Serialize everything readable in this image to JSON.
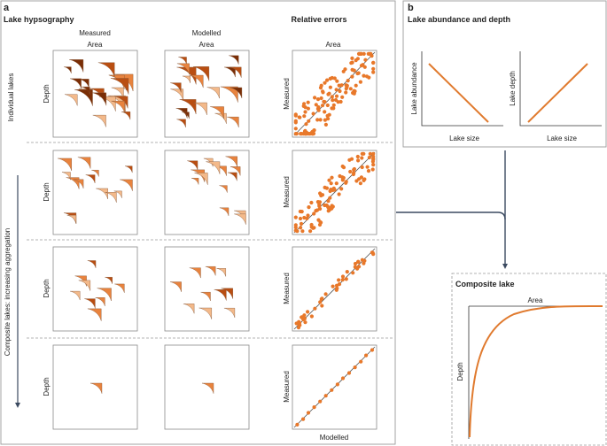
{
  "panel_a": {
    "label": "a",
    "title": "Lake hypsography",
    "col_measured": "Measured",
    "col_modelled": "Modelled",
    "col_errors": "Relative errors",
    "area_label": "Area",
    "depth_label": "Depth",
    "measured_axis_label": "Measured",
    "modelled_axis_label": "Modelled",
    "row_label_individual": "Individual lakes",
    "row_label_composite": "Composite lakes: increasing aggregation"
  },
  "panel_b": {
    "label": "b",
    "title": "Lake abundance and depth",
    "chart1_ylabel": "Lake abundance",
    "chart1_xlabel": "Lake size",
    "chart2_ylabel": "Lake depth",
    "chart2_xlabel": "Lake size"
  },
  "composite_lake": {
    "title": "Composite lake",
    "area_label": "Area",
    "depth_label": "Depth"
  },
  "colors": {
    "light": "#f3b98a",
    "mid": "#e8833e",
    "dark": "#b94e12",
    "darkest": "#7a2e06",
    "dot": "#e8782a",
    "line": "#e07a2e",
    "arrow": "#3b4a60"
  },
  "rows": [
    {
      "name": "individual",
      "points": 130,
      "spread": 0.55
    },
    {
      "name": "aggregation-1",
      "points": 100,
      "spread": 0.45
    },
    {
      "name": "aggregation-2",
      "points": 45,
      "spread": 0.12
    },
    {
      "name": "aggregation-3",
      "points": 14,
      "spread": 0.02
    }
  ]
}
